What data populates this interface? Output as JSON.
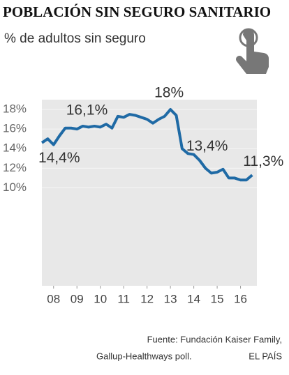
{
  "chart_data": {
    "type": "line",
    "title": "POBLACIÓN SIN SEGURO SANITARIO",
    "subtitle": "% de adultos sin seguro",
    "x": [
      2008,
      2008.25,
      2008.5,
      2008.75,
      2009,
      2009.25,
      2009.5,
      2009.75,
      2010,
      2010.25,
      2010.5,
      2010.75,
      2011,
      2011.25,
      2011.5,
      2011.75,
      2012,
      2012.25,
      2012.5,
      2012.75,
      2013,
      2013.25,
      2013.5,
      2013.75,
      2014,
      2014.25,
      2014.5,
      2014.75,
      2015,
      2015.25,
      2015.5,
      2015.75,
      2016,
      2016.25,
      2016.5,
      2016.75,
      2017
    ],
    "series": [
      {
        "color": "#1f6aa5",
        "values": [
          14.6,
          15.0,
          14.4,
          15.3,
          16.1,
          16.1,
          16.0,
          16.3,
          16.2,
          16.3,
          16.2,
          16.5,
          16.1,
          17.3,
          17.2,
          17.5,
          17.4,
          17.2,
          17.0,
          16.6,
          17.0,
          17.3,
          18.0,
          17.4,
          14.0,
          13.5,
          13.4,
          12.8,
          12.0,
          11.5,
          11.6,
          11.9,
          11.0,
          11.0,
          10.8,
          10.8,
          11.3
        ],
        "value_labels": [
          null,
          null,
          "14,4%",
          null,
          "16,1%",
          null,
          null,
          null,
          null,
          null,
          null,
          null,
          null,
          null,
          null,
          null,
          null,
          null,
          null,
          null,
          null,
          null,
          "18%",
          null,
          null,
          null,
          "13,4%",
          null,
          null,
          null,
          null,
          null,
          null,
          null,
          null,
          null,
          "11,3%"
        ]
      }
    ],
    "xlim": [
      2008,
      2017.2
    ],
    "xticks": [
      {
        "value": 2008.5,
        "label": "08"
      },
      {
        "value": 2009.5,
        "label": "09"
      },
      {
        "value": 2010.5,
        "label": "10"
      },
      {
        "value": 2011.5,
        "label": "11"
      },
      {
        "value": 2012.5,
        "label": "12"
      },
      {
        "value": 2013.5,
        "label": "13"
      },
      {
        "value": 2014.5,
        "label": "14"
      },
      {
        "value": 2015.5,
        "label": "15"
      },
      {
        "value": 2016.5,
        "label": "16"
      }
    ],
    "ylim": [
      0,
      19
    ],
    "yticks": [
      {
        "value": 10,
        "label": "10%"
      },
      {
        "value": 12,
        "label": "12%"
      },
      {
        "value": 14,
        "label": "14%"
      },
      {
        "value": 16,
        "label": "16%"
      },
      {
        "value": 18,
        "label": "18%"
      }
    ],
    "grid": true,
    "source": [
      "Fuente: Fundación Kaiser Family,",
      "Gallup-Healthways poll."
    ],
    "credit": "EL PAÍS"
  }
}
